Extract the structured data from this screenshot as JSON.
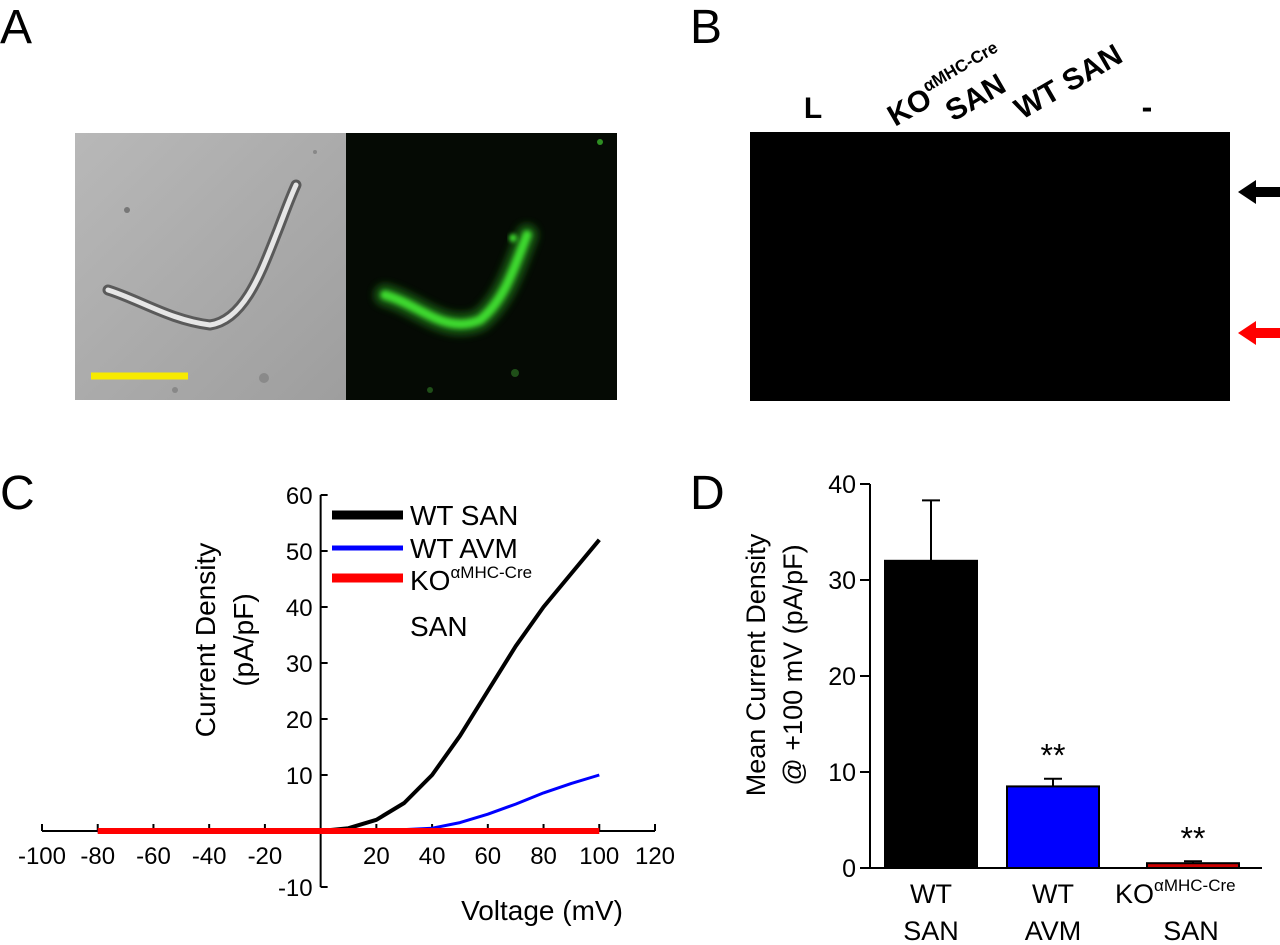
{
  "panels": {
    "a": "A",
    "b": "B",
    "c": "C",
    "d": "D"
  },
  "gel": {
    "lanes": [
      {
        "id": "L",
        "label": "L"
      },
      {
        "id": "ko",
        "label_main": "KO",
        "label_sup": "αMHC-Cre",
        "label_sub": "SAN"
      },
      {
        "id": "wt",
        "label": "WT SAN"
      },
      {
        "id": "neg",
        "label": "-"
      }
    ],
    "arrow_upper_color": "#000000",
    "arrow_lower_color": "#ff0000"
  },
  "micrograph": {
    "scale_bar_color": "#ffee00",
    "fluor_color": "#22cc22"
  },
  "chart_data": [
    {
      "panel": "C",
      "type": "line",
      "xlabel": "Voltage (mV)",
      "ylabel": "Current Density (pA/pF)",
      "ylabel_line1": "Current Density",
      "ylabel_line2": "(pA/pF)",
      "xlim": [
        -100,
        120
      ],
      "ylim": [
        -10,
        60
      ],
      "xticks": [
        -100,
        -80,
        -60,
        -40,
        -20,
        20,
        40,
        60,
        80,
        100,
        120
      ],
      "yticks": [
        -10,
        10,
        20,
        30,
        40,
        50,
        60
      ],
      "x_tick_labels": [
        "-100",
        "-80",
        "-60",
        "-40",
        "-20",
        "20",
        "40",
        "60",
        "80",
        "100",
        "120"
      ],
      "y_tick_labels": [
        "-10",
        "10",
        "20",
        "30",
        "40",
        "50",
        "60"
      ],
      "legend_position": "top-right",
      "legend": [
        {
          "label": "WT SAN",
          "color": "#000000"
        },
        {
          "label": "WT AVM",
          "color": "#0000ff"
        },
        {
          "label_main": "KO",
          "label_sup": "αMHC-Cre",
          "label_sub": "SAN",
          "color": "#ff0000"
        }
      ],
      "series": [
        {
          "name": "WT SAN",
          "color": "#000000",
          "x": [
            -80,
            -60,
            -40,
            -20,
            0,
            10,
            20,
            30,
            40,
            50,
            60,
            70,
            80,
            90,
            100
          ],
          "y": [
            0,
            0,
            0,
            0,
            0,
            0.5,
            2,
            5,
            10,
            17,
            25,
            33,
            40,
            46,
            52
          ]
        },
        {
          "name": "WT AVM",
          "color": "#0000ff",
          "x": [
            -80,
            -40,
            0,
            20,
            40,
            50,
            60,
            70,
            80,
            90,
            100
          ],
          "y": [
            0,
            0,
            0,
            0,
            0.5,
            1.5,
            3,
            4.8,
            6.8,
            8.5,
            10
          ]
        },
        {
          "name": "KO SAN",
          "color": "#ff0000",
          "x": [
            -80,
            -40,
            0,
            40,
            80,
            100
          ],
          "y": [
            0,
            0,
            0,
            0,
            0,
            0
          ]
        }
      ]
    },
    {
      "panel": "D",
      "type": "bar",
      "ylabel_line1": "Mean Current Density",
      "ylabel_line2": "@ +100 mV (pA/pF)",
      "ylim": [
        0,
        40
      ],
      "yticks": [
        0,
        10,
        20,
        30,
        40
      ],
      "y_tick_labels": [
        "0",
        "10",
        "20",
        "30",
        "40"
      ],
      "categories": [
        {
          "line1": "WT",
          "line2": "SAN"
        },
        {
          "line1": "WT",
          "line2": "AVM"
        },
        {
          "line1": "KO",
          "sup": "αMHC-Cre",
          "line2": "SAN"
        }
      ],
      "values": [
        32,
        8.5,
        0.5
      ],
      "errors": [
        6.3,
        0.8,
        0.2
      ],
      "colors": [
        "#000000",
        "#0000ff",
        "#cc0000"
      ],
      "annotations": [
        "",
        "**",
        "**"
      ]
    }
  ]
}
